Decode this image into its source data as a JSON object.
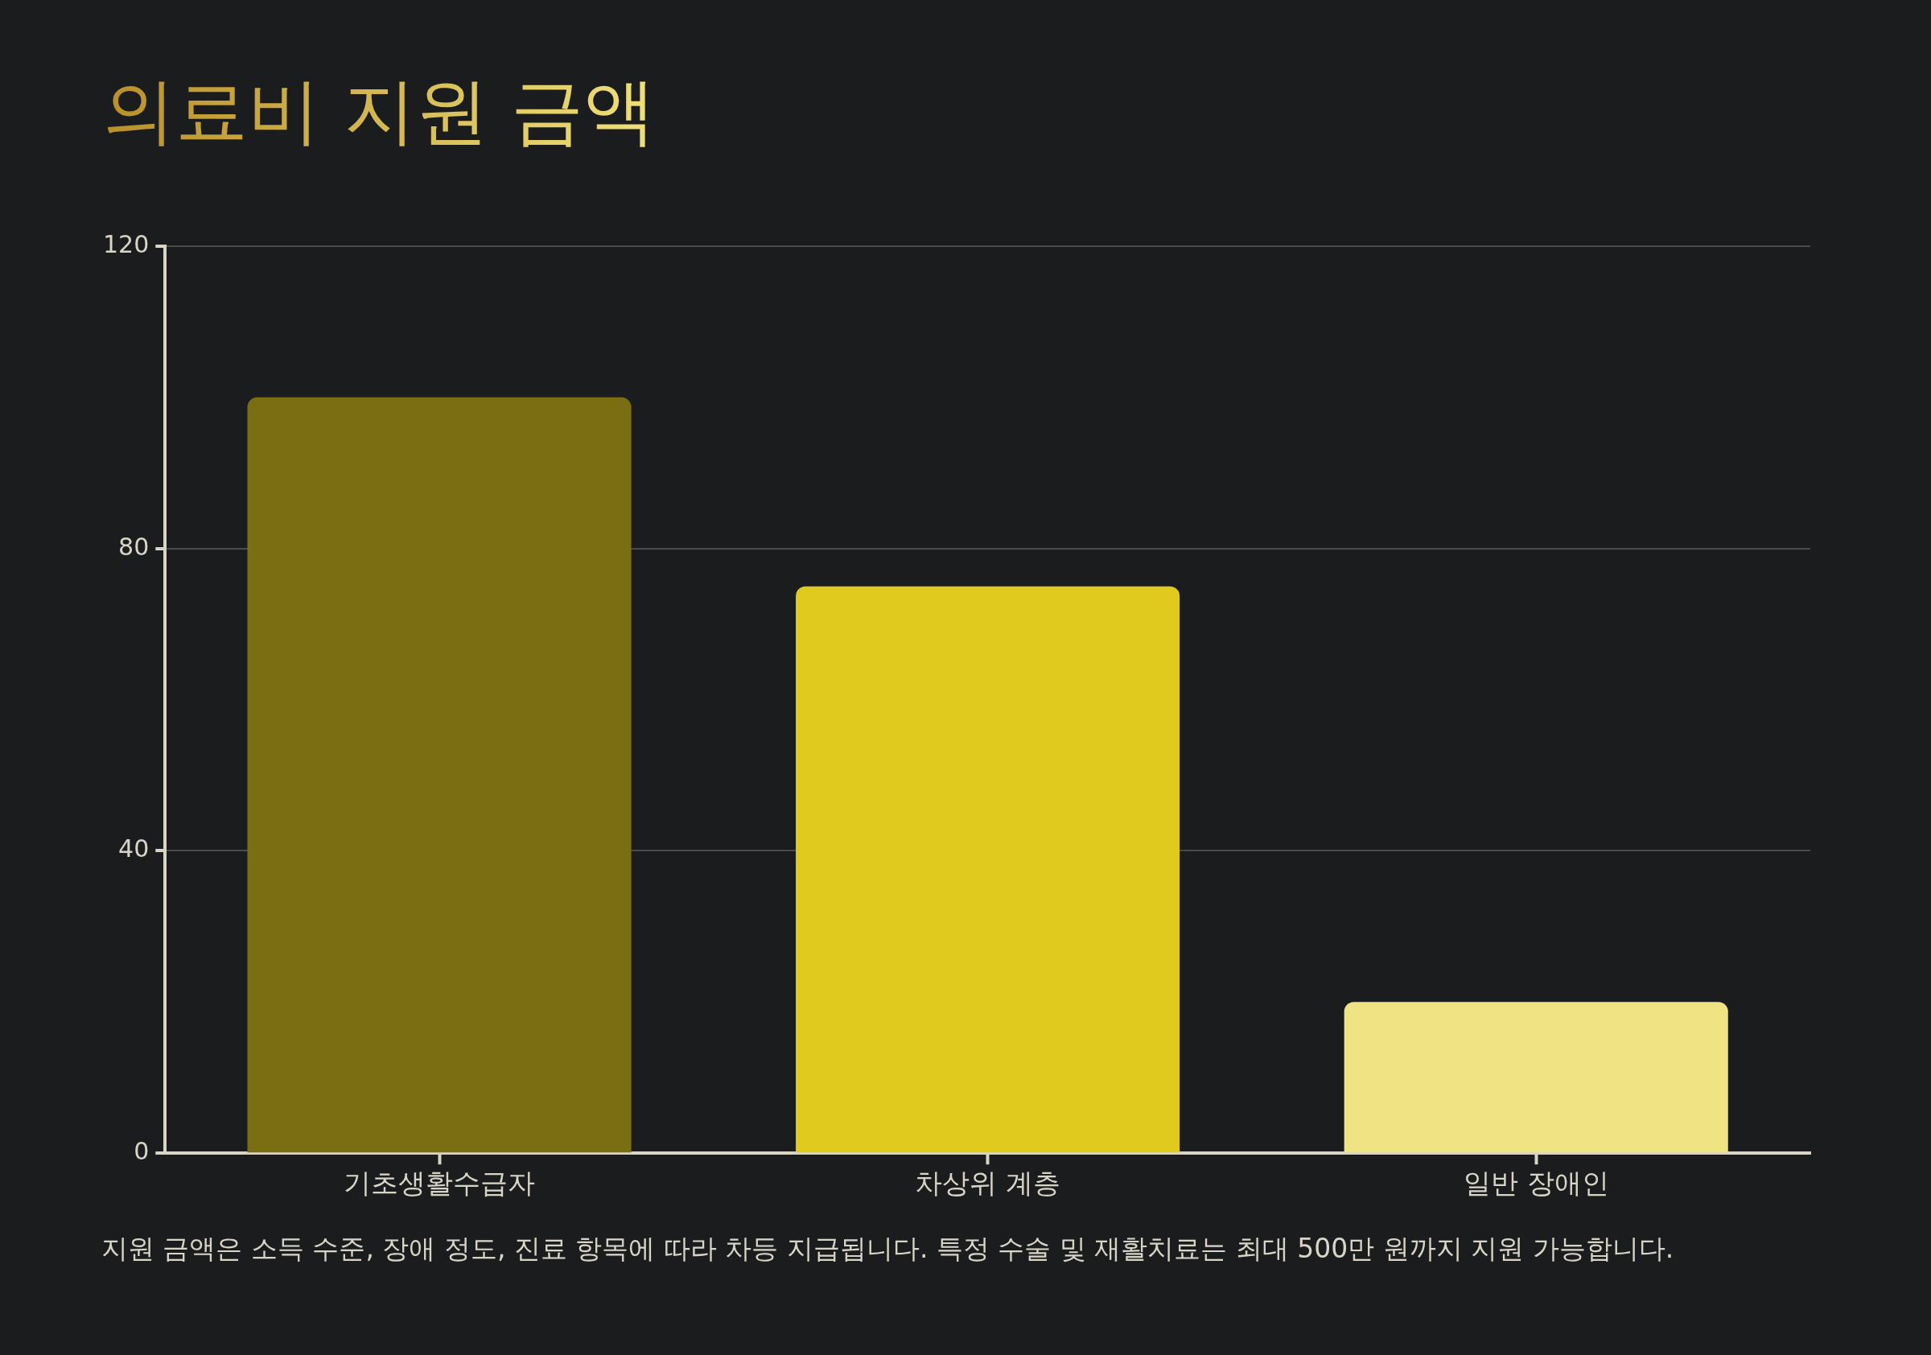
{
  "chart_data": {
    "type": "bar",
    "title": "의료비 지원 금액",
    "categories": [
      "기초생활수급자",
      "차상위 계층",
      "일반 장애인"
    ],
    "values": [
      100,
      75,
      20
    ],
    "colors": [
      "#7b6d12",
      "#e0ca1d",
      "#f0e384"
    ],
    "ylim": [
      0,
      120
    ],
    "yticks": [
      0,
      40,
      80,
      120
    ],
    "grid": "y",
    "legend": false,
    "annotations": [
      "지원 금액은 소득 수준, 장애 정도, 진료 항목에 따라 차등 지급됩니다. 특정 수술 및 재활치료는 최대 500만 원까지 지원 가능합니다."
    ]
  }
}
